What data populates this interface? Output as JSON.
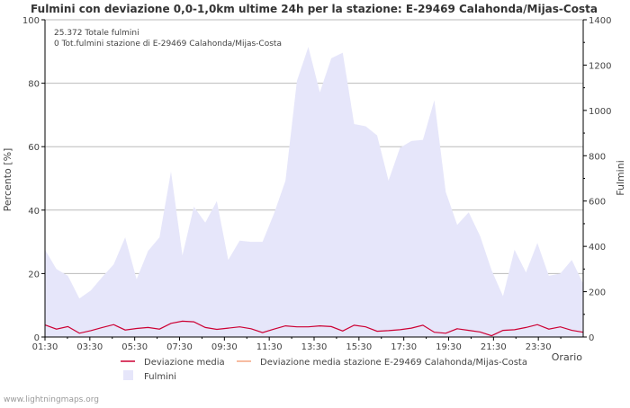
{
  "chart_data": {
    "type": "area",
    "title": "Fulmini con deviazione 0,0-1,0km ultime 24h per la stazione: E-29469 Calahonda/Mijas-Costa",
    "xlabel": "Orario",
    "ylabel_left": "Percento   [%]",
    "ylabel_right": "Fulmini",
    "ylim_left": [
      0,
      100
    ],
    "ylim_right": [
      0,
      1400
    ],
    "y_ticks_left": [
      0,
      20,
      40,
      60,
      80,
      100
    ],
    "y_ticks_right": [
      0,
      200,
      400,
      600,
      800,
      1000,
      1200,
      1400
    ],
    "x_ticks": [
      "01:30",
      "03:30",
      "05:30",
      "07:30",
      "09:30",
      "11:30",
      "13:30",
      "15:30",
      "17:30",
      "19:30",
      "21:30",
      "23:30"
    ],
    "info_lines": [
      "25.372 Totale fulmini",
      "0 Tot.fulmini stazione di E-29469 Calahonda/Mijas-Costa"
    ],
    "grid": true,
    "series": [
      {
        "name": "Fulmini",
        "axis": "right",
        "kind": "area",
        "color": "#e6e6fa",
        "values": [
          385,
          300,
          270,
          170,
          205,
          265,
          320,
          440,
          255,
          380,
          440,
          730,
          360,
          575,
          505,
          600,
          340,
          425,
          420,
          420,
          545,
          690,
          1130,
          1280,
          1080,
          1230,
          1255,
          940,
          930,
          890,
          690,
          835,
          865,
          870,
          1045,
          640,
          495,
          550,
          445,
          295,
          180,
          385,
          285,
          415,
          270,
          280,
          340,
          235
        ]
      },
      {
        "name": "Deviazione media",
        "axis": "left",
        "kind": "line",
        "color": "#cc0033",
        "values": [
          3.8,
          2.5,
          3.3,
          1.2,
          2.0,
          3.0,
          3.9,
          2.2,
          2.7,
          3.0,
          2.5,
          4.3,
          5.0,
          4.8,
          3.0,
          2.4,
          2.8,
          3.2,
          2.6,
          1.4,
          2.5,
          3.5,
          3.2,
          3.2,
          3.5,
          3.3,
          1.9,
          3.7,
          3.2,
          1.8,
          2.0,
          2.3,
          2.8,
          3.7,
          1.5,
          1.2,
          2.6,
          2.1,
          1.6,
          0.4,
          2.1,
          2.3,
          3.0,
          3.9,
          2.5,
          3.2,
          2.1,
          1.5
        ]
      },
      {
        "name": "Deviazione media stazione E-29469 Calahonda/Mijas-Costa",
        "axis": "left",
        "kind": "line",
        "color": "#f4a582",
        "values": []
      }
    ]
  },
  "watermark": "www.lightningmaps.org"
}
